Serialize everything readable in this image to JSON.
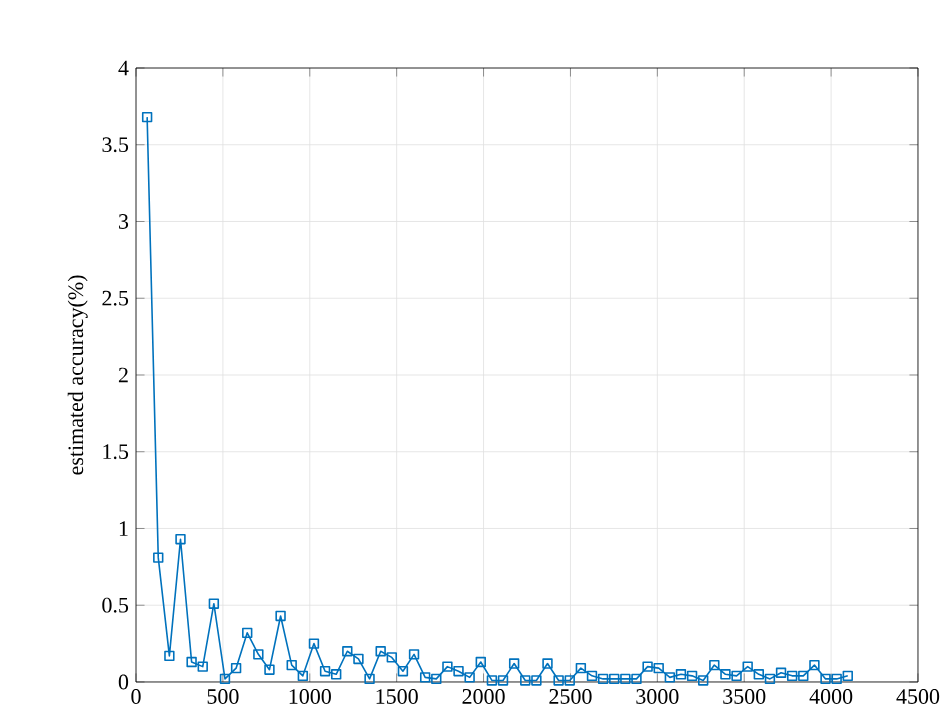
{
  "chart_data": {
    "type": "line",
    "ylabel": "estimated accuracy(%)",
    "x": [
      64,
      128,
      192,
      256,
      320,
      384,
      448,
      512,
      576,
      640,
      704,
      768,
      832,
      896,
      960,
      1024,
      1088,
      1152,
      1216,
      1280,
      1344,
      1408,
      1472,
      1536,
      1600,
      1664,
      1728,
      1792,
      1856,
      1920,
      1984,
      2048,
      2112,
      2176,
      2240,
      2304,
      2368,
      2432,
      2496,
      2560,
      2624,
      2688,
      2752,
      2816,
      2880,
      2944,
      3008,
      3072,
      3136,
      3200,
      3264,
      3328,
      3392,
      3456,
      3520,
      3584,
      3648,
      3712,
      3776,
      3840,
      3904,
      3968,
      4032,
      4096
    ],
    "series": [
      {
        "color": "#0072bd",
        "values": [
          3.68,
          0.81,
          0.17,
          0.93,
          0.13,
          0.1,
          0.51,
          0.02,
          0.09,
          0.32,
          0.18,
          0.08,
          0.43,
          0.11,
          0.04,
          0.25,
          0.07,
          0.05,
          0.2,
          0.15,
          0.02,
          0.2,
          0.16,
          0.07,
          0.18,
          0.03,
          0.02,
          0.1,
          0.07,
          0.03,
          0.13,
          0.01,
          0.01,
          0.12,
          0.01,
          0.01,
          0.12,
          0.01,
          0.01,
          0.09,
          0.04,
          0.02,
          0.02,
          0.02,
          0.02,
          0.1,
          0.09,
          0.03,
          0.05,
          0.04,
          0.01,
          0.11,
          0.05,
          0.04,
          0.1,
          0.05,
          0.02,
          0.06,
          0.04,
          0.04,
          0.11,
          0.02,
          0.02,
          0.04
        ]
      }
    ],
    "xlim": [
      0,
      4500
    ],
    "xticks": [
      0,
      500,
      1000,
      1500,
      2000,
      2500,
      3000,
      3500,
      4000,
      4500
    ],
    "ylim": [
      0,
      4
    ],
    "yticks": [
      0,
      0.5,
      1,
      1.5,
      2,
      2.5,
      3,
      3.5,
      4
    ],
    "grid": true,
    "marker": "square",
    "line_style": "solid"
  }
}
